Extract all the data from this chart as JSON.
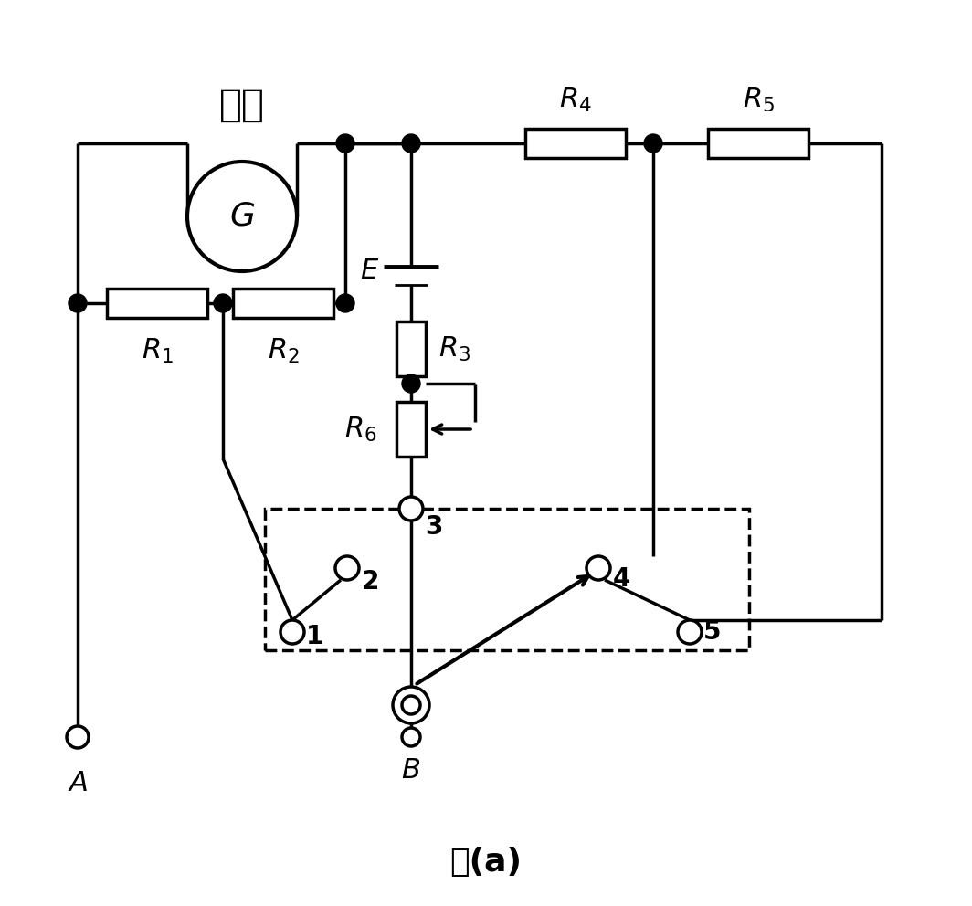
{
  "bg_color": "#ffffff",
  "line_color": "#000000",
  "lw": 2.5,
  "fig_w": 10.64,
  "fig_h": 9.92
}
